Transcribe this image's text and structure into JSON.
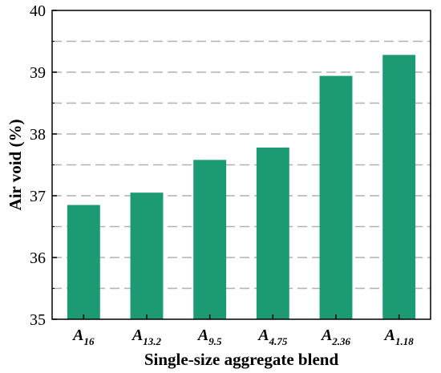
{
  "chart_data": {
    "type": "bar",
    "categories": [
      {
        "main": "A",
        "sub": "16"
      },
      {
        "main": "A",
        "sub": "13.2"
      },
      {
        "main": "A",
        "sub": "9.5"
      },
      {
        "main": "A",
        "sub": "4.75"
      },
      {
        "main": "A",
        "sub": "2.36"
      },
      {
        "main": "A",
        "sub": "1.18"
      }
    ],
    "values": [
      36.85,
      37.05,
      37.58,
      37.78,
      38.94,
      39.28
    ],
    "title": "",
    "xlabel": "Single-size aggregate blend",
    "ylabel": "Air void (%)",
    "ylim": [
      35,
      40
    ],
    "yticks": [
      35,
      36,
      37,
      38,
      39,
      40
    ],
    "grid": "horizontal dashed",
    "bar_color": "#1c9a74",
    "grid_color": "#b0b0b0"
  }
}
